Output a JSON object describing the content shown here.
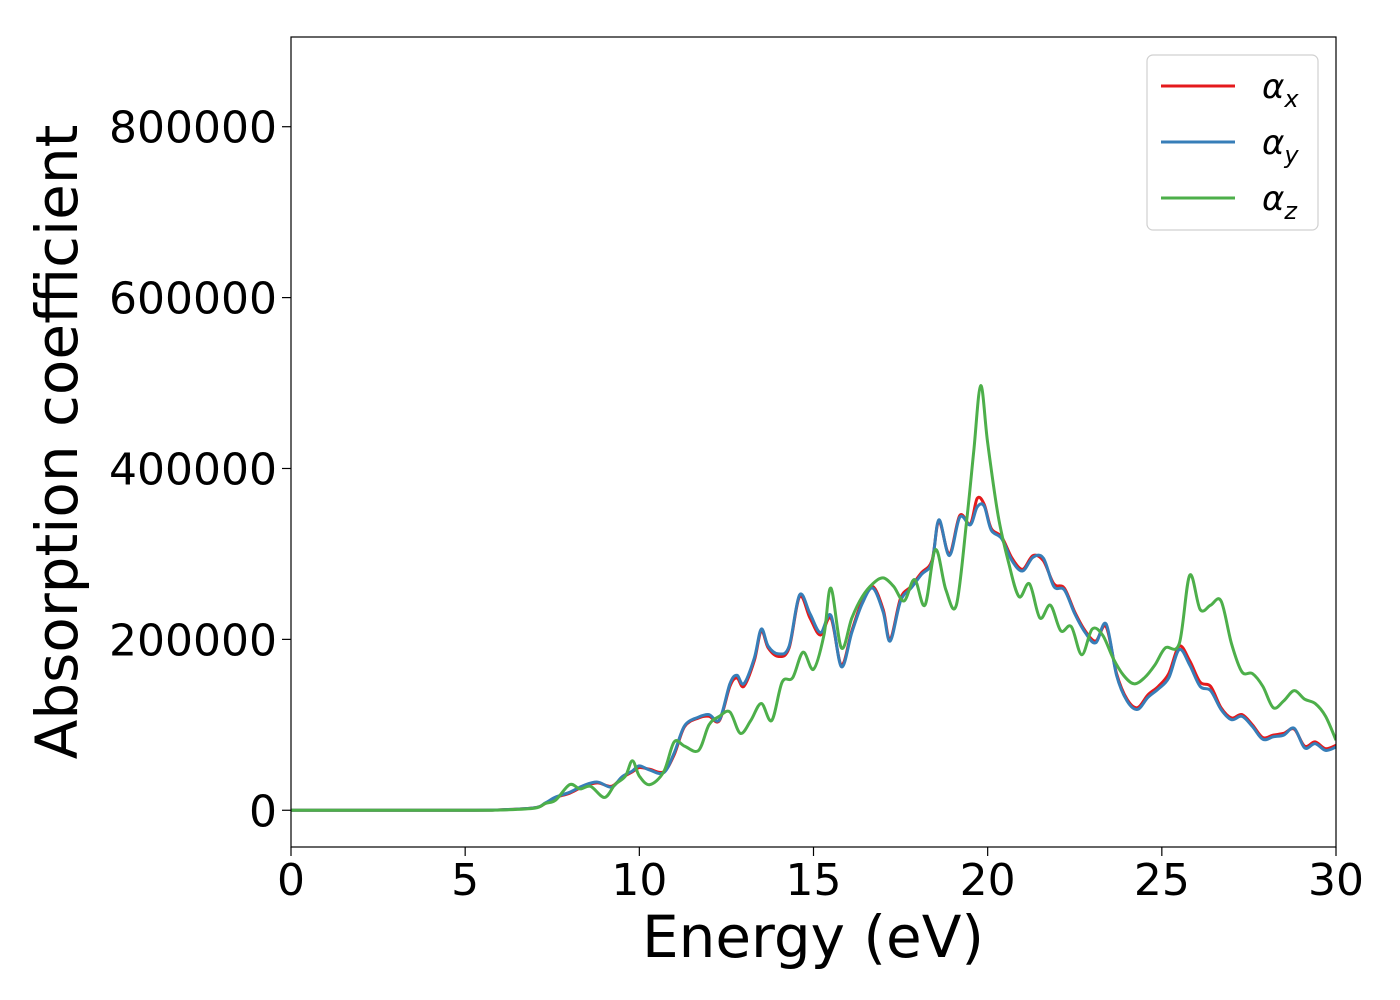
{
  "chart_data": {
    "type": "line",
    "title": "",
    "xlabel": "Energy (eV)",
    "ylabel": "Absorption coefficient",
    "xlim": [
      0,
      30
    ],
    "ylim": [
      -43000,
      905000
    ],
    "xticks": [
      0,
      5,
      10,
      15,
      20,
      25,
      30
    ],
    "yticks": [
      0,
      200000,
      400000,
      600000,
      800000
    ],
    "grid": false,
    "legend": "top-right",
    "series": [
      {
        "name": "αx",
        "label_main": "α",
        "label_sub": "x",
        "color": "#e41a1c",
        "x": [
          0,
          5,
          6,
          7,
          7.3,
          7.6,
          8,
          8.4,
          8.8,
          9.2,
          9.5,
          9.8,
          10,
          10.3,
          10.7,
          11,
          11.3,
          11.7,
          12,
          12.3,
          12.6,
          12.8,
          13,
          13.3,
          13.5,
          13.7,
          14,
          14.3,
          14.6,
          14.9,
          15.2,
          15.5,
          15.8,
          16.1,
          16.4,
          16.7,
          17,
          17.2,
          17.5,
          17.8,
          18.1,
          18.4,
          18.6,
          18.9,
          19.2,
          19.5,
          19.7,
          19.9,
          20.1,
          20.4,
          20.7,
          21,
          21.3,
          21.6,
          21.9,
          22.2,
          22.5,
          22.8,
          23.1,
          23.4,
          23.7,
          24,
          24.3,
          24.6,
          24.9,
          25.2,
          25.5,
          25.8,
          26.1,
          26.4,
          26.7,
          27,
          27.3,
          27.6,
          27.9,
          28.2,
          28.5,
          28.8,
          29.1,
          29.4,
          29.7,
          30
        ],
        "values": [
          0,
          0,
          500,
          3000,
          8000,
          15000,
          20000,
          28000,
          32000,
          28000,
          38000,
          45000,
          50000,
          48000,
          45000,
          65000,
          98000,
          108000,
          110000,
          105000,
          145000,
          155000,
          145000,
          175000,
          210000,
          190000,
          180000,
          190000,
          250000,
          225000,
          205000,
          225000,
          170000,
          210000,
          245000,
          262000,
          235000,
          200000,
          248000,
          262000,
          278000,
          292000,
          338000,
          300000,
          345000,
          335000,
          365000,
          358000,
          330000,
          320000,
          295000,
          282000,
          298000,
          292000,
          265000,
          260000,
          232000,
          210000,
          198000,
          215000,
          160000,
          130000,
          120000,
          135000,
          145000,
          160000,
          192000,
          175000,
          150000,
          145000,
          120000,
          108000,
          112000,
          100000,
          85000,
          88000,
          90000,
          95000,
          75000,
          80000,
          72000,
          76000
        ]
      },
      {
        "name": "αy",
        "label_main": "α",
        "label_sub": "y",
        "color": "#377eb8",
        "x": [
          0,
          5,
          6,
          7,
          7.3,
          7.6,
          8,
          8.4,
          8.8,
          9.2,
          9.5,
          9.8,
          10,
          10.3,
          10.7,
          11,
          11.3,
          11.7,
          12,
          12.3,
          12.6,
          12.8,
          13,
          13.3,
          13.5,
          13.7,
          14,
          14.3,
          14.6,
          14.9,
          15.2,
          15.5,
          15.8,
          16.1,
          16.4,
          16.7,
          17,
          17.2,
          17.5,
          17.8,
          18.1,
          18.4,
          18.6,
          18.9,
          19.2,
          19.5,
          19.7,
          19.9,
          20.1,
          20.4,
          20.7,
          21,
          21.3,
          21.6,
          21.9,
          22.2,
          22.5,
          22.8,
          23.1,
          23.4,
          23.7,
          24,
          24.3,
          24.6,
          24.9,
          25.2,
          25.5,
          25.8,
          26.1,
          26.4,
          26.7,
          27,
          27.3,
          27.6,
          27.9,
          28.2,
          28.5,
          28.8,
          29.1,
          29.4,
          29.7,
          30
        ],
        "values": [
          0,
          0,
          500,
          3000,
          8500,
          15500,
          21000,
          29000,
          33000,
          27000,
          39000,
          46000,
          52000,
          47000,
          44000,
          67000,
          99000,
          109000,
          112000,
          106000,
          148000,
          158000,
          148000,
          178000,
          212000,
          192000,
          183000,
          192000,
          252000,
          230000,
          208000,
          228000,
          168000,
          208000,
          242000,
          260000,
          232000,
          198000,
          245000,
          260000,
          276000,
          290000,
          340000,
          298000,
          343000,
          334000,
          355000,
          356000,
          328000,
          318000,
          292000,
          280000,
          296000,
          295000,
          262000,
          258000,
          230000,
          208000,
          196000,
          218000,
          158000,
          128000,
          118000,
          132000,
          142000,
          155000,
          188000,
          170000,
          145000,
          140000,
          118000,
          106000,
          110000,
          98000,
          83000,
          86000,
          88000,
          96000,
          73000,
          78000,
          70000,
          74000
        ]
      },
      {
        "name": "αz",
        "label_main": "α",
        "label_sub": "z",
        "color": "#4daf4a",
        "x": [
          0,
          5,
          6,
          7,
          7.3,
          7.6,
          8,
          8.3,
          8.6,
          9,
          9.3,
          9.6,
          9.8,
          10,
          10.3,
          10.7,
          11,
          11.3,
          11.7,
          12,
          12.3,
          12.6,
          12.9,
          13.2,
          13.5,
          13.8,
          14.1,
          14.4,
          14.7,
          15,
          15.3,
          15.5,
          15.8,
          16.1,
          16.4,
          16.7,
          17,
          17.3,
          17.6,
          17.9,
          18.2,
          18.5,
          18.8,
          19.1,
          19.4,
          19.6,
          19.8,
          20,
          20.3,
          20.6,
          20.9,
          21.2,
          21.5,
          21.8,
          22.1,
          22.4,
          22.7,
          23,
          23.3,
          23.6,
          23.9,
          24.2,
          24.5,
          24.8,
          25.1,
          25.5,
          25.8,
          26.1,
          26.4,
          26.7,
          27,
          27.3,
          27.6,
          27.9,
          28.2,
          28.5,
          28.8,
          29.1,
          29.4,
          29.7,
          30
        ],
        "values": [
          0,
          0,
          300,
          2500,
          8000,
          12000,
          30000,
          25000,
          28000,
          15000,
          30000,
          40000,
          58000,
          40000,
          30000,
          45000,
          80000,
          75000,
          70000,
          100000,
          110000,
          115000,
          90000,
          105000,
          125000,
          105000,
          150000,
          155000,
          185000,
          165000,
          205000,
          260000,
          190000,
          225000,
          250000,
          265000,
          272000,
          262000,
          245000,
          270000,
          240000,
          305000,
          258000,
          240000,
          340000,
          420000,
          497000,
          430000,
          345000,
          290000,
          250000,
          265000,
          225000,
          240000,
          210000,
          215000,
          182000,
          212000,
          205000,
          178000,
          158000,
          148000,
          155000,
          170000,
          190000,
          195000,
          275000,
          235000,
          240000,
          245000,
          195000,
          162000,
          160000,
          145000,
          120000,
          128000,
          140000,
          130000,
          125000,
          110000,
          82000
        ]
      }
    ]
  }
}
